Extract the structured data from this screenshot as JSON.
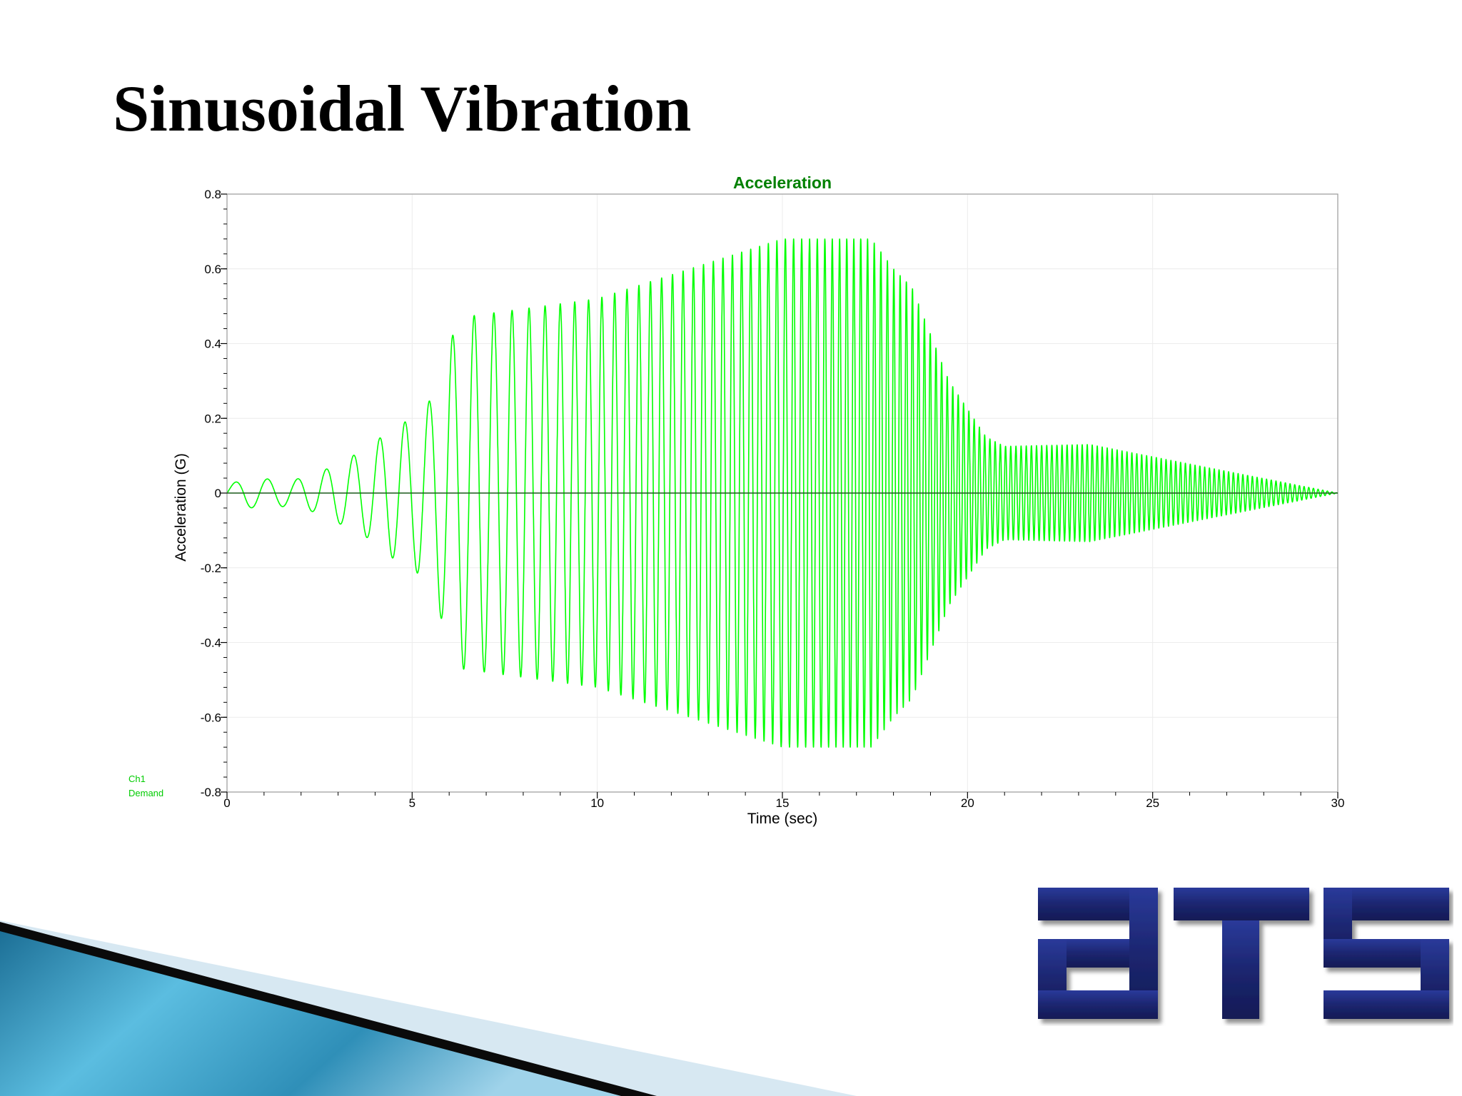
{
  "slide": {
    "title": "Sinusoidal Vibration"
  },
  "colors": {
    "series": "#00ff00",
    "title": "#008000",
    "legend": "#00cc00",
    "logo": "#1e2a78"
  },
  "logo": {
    "icon": "ats-logo",
    "text": "ATS"
  },
  "chart_data": {
    "type": "line",
    "title": "Acceleration",
    "xlabel": "Time (sec)",
    "ylabel": "Acceleration (G)",
    "xlim": [
      0,
      30
    ],
    "ylim": [
      -0.8,
      0.8
    ],
    "xticks": [
      0,
      5,
      10,
      15,
      20,
      25,
      30
    ],
    "yticks": [
      -0.8,
      -0.6,
      -0.4,
      -0.2,
      0,
      0.2,
      0.4,
      0.6,
      0.8
    ],
    "xtick_labels": [
      "0",
      "5",
      "10",
      "15",
      "20",
      "25",
      "30"
    ],
    "ytick_labels": [
      "-0.8",
      "-0.6",
      "-0.4",
      "-0.2",
      "0",
      "0.2",
      "0.4",
      "0.6",
      "0.8"
    ],
    "grid": true,
    "legend": {
      "position": "bottom-left",
      "entries": [
        "Ch1",
        "Demand"
      ]
    },
    "series": [
      {
        "name": "Ch1 Demand",
        "frequency_hz": [
          [
            0,
            1.1
          ],
          [
            6,
            1.6
          ],
          [
            10,
            2.8
          ],
          [
            15,
            4.4
          ],
          [
            18,
            5.8
          ],
          [
            20,
            7.0
          ],
          [
            25,
            7.6
          ],
          [
            30,
            8.0
          ]
        ],
        "amplitude_envelope": [
          [
            0,
            0.02
          ],
          [
            0.5,
            0.04
          ],
          [
            1.8,
            0.035
          ],
          [
            2.5,
            0.055
          ],
          [
            3.2,
            0.09
          ],
          [
            3.8,
            0.12
          ],
          [
            4.4,
            0.17
          ],
          [
            5.0,
            0.2
          ],
          [
            5.5,
            0.25
          ],
          [
            6.0,
            0.4
          ],
          [
            6.3,
            0.47
          ],
          [
            10,
            0.52
          ],
          [
            15,
            0.68
          ],
          [
            17.4,
            0.68
          ],
          [
            18.0,
            0.6
          ],
          [
            18.5,
            0.55
          ],
          [
            19.5,
            0.3
          ],
          [
            20.5,
            0.15
          ],
          [
            21.0,
            0.125
          ],
          [
            23.3,
            0.13
          ],
          [
            30,
            0.0
          ]
        ]
      }
    ]
  }
}
